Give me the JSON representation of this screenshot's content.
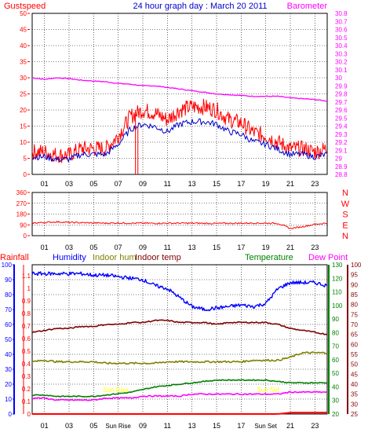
{
  "title": "24 hour graph day : March 20 2011",
  "colors": {
    "gust": "#ff0000",
    "wind": "#0000cc",
    "barometer": "#ff00ff",
    "direction": "#ff0000",
    "rainfall": "#ff0000",
    "humidity": "#0000ff",
    "indoor_hum": "#808000",
    "indoor_temp": "#800000",
    "temperature": "#008000",
    "dew_point": "#ff00ff",
    "sun_marker": "#ffff00",
    "axis_left_bottom": "#0000ff",
    "axis_temp_left": "#008000",
    "axis_temp_right": "#800000",
    "grid": "#000000"
  },
  "hour_labels": [
    "01",
    "03",
    "05",
    "07",
    "09",
    "11",
    "13",
    "15",
    "17",
    "19",
    "21",
    "23"
  ],
  "bottom_hour_labels": [
    "01",
    "03",
    "05",
    "Sun Rise",
    "09",
    "11",
    "13",
    "15",
    "17",
    "Sun Set",
    "21",
    "23"
  ],
  "charts": {
    "top": {
      "left_label": "Gustspeed",
      "right_label": "Barometer",
      "y_left_ticks": [
        "50",
        "45",
        "40",
        "35",
        "30",
        "25",
        "20",
        "15",
        "10",
        "5",
        "0"
      ],
      "y_right_ticks": [
        "30.8",
        "30.7",
        "30.6",
        "30.5",
        "30.4",
        "30.3",
        "30.2",
        "30.1",
        "30",
        "29.9",
        "29.8",
        "29.7",
        "29.6",
        "29.5",
        "29.4",
        "29.3",
        "29.2",
        "29.1",
        "29",
        "28.9",
        "28.8"
      ]
    },
    "middle": {
      "y_ticks": [
        "360",
        "270",
        "180",
        "90",
        "0"
      ],
      "compass": [
        "N",
        "W",
        "S",
        "E",
        "N"
      ]
    },
    "bottom": {
      "legend": {
        "rainfall": "Rainfall",
        "humidity": "Humidity",
        "indoor_hum": "Indoor hum",
        "indoor_temp": "Indoor temp",
        "temperature": "Temperature",
        "dew_point": "Dew Point"
      },
      "y_humidity_ticks": [
        "100",
        "90",
        "80",
        "70",
        "60",
        "50",
        "40",
        "30",
        "20",
        "10",
        "0"
      ],
      "y_rain_ticks": [
        "1.1",
        "1",
        "0.9",
        "0.8",
        "0.7",
        "0.6",
        "0.5",
        "0.4",
        "0.3",
        "0.2",
        "0.1",
        "0"
      ],
      "y_temp_green_ticks": [
        "130",
        "120",
        "110",
        "100",
        "90",
        "80",
        "70",
        "60",
        "50",
        "40",
        "30",
        "20"
      ],
      "y_temp_red_ticks": [
        "100",
        "95",
        "90",
        "85",
        "80",
        "75",
        "70",
        "65",
        "60",
        "55",
        "50",
        "45",
        "40",
        "35",
        "30",
        "25"
      ],
      "sun_labels": [
        "Sun Rise",
        "Sun Set"
      ]
    }
  },
  "chart_data": [
    {
      "type": "line",
      "title": "24 hour graph day : March 20 2011",
      "x": [
        0,
        1,
        2,
        3,
        4,
        5,
        6,
        7,
        8,
        9,
        10,
        11,
        12,
        13,
        14,
        15,
        16,
        17,
        18,
        19,
        20,
        21,
        22,
        23,
        24
      ],
      "series": [
        {
          "name": "Gustspeed",
          "axis": "left",
          "values": [
            7,
            7,
            6,
            6,
            8,
            8,
            8,
            12,
            18,
            20,
            19,
            17,
            20,
            21,
            21,
            20,
            17,
            16,
            13,
            12,
            10,
            8,
            8,
            7,
            8
          ]
        },
        {
          "name": "Barometer",
          "axis": "right",
          "values": [
            30.0,
            29.98,
            30.0,
            29.99,
            29.97,
            29.96,
            29.95,
            29.93,
            29.92,
            29.9,
            29.9,
            29.88,
            29.86,
            29.84,
            29.82,
            29.8,
            29.79,
            29.78,
            29.77,
            29.77,
            29.77,
            29.75,
            29.74,
            29.73,
            29.71
          ]
        }
      ],
      "ylim_left": [
        0,
        50
      ],
      "ylim_right": [
        28.8,
        30.8
      ]
    },
    {
      "type": "line",
      "x": [
        0,
        1,
        2,
        3,
        4,
        5,
        6,
        7,
        8,
        9,
        10,
        11,
        12,
        13,
        14,
        15,
        16,
        17,
        18,
        19,
        20,
        21,
        22,
        23,
        24
      ],
      "series": [
        {
          "name": "Wind direction",
          "values": [
            105,
            110,
            115,
            110,
            108,
            106,
            104,
            106,
            104,
            104,
            103,
            104,
            104,
            104,
            103,
            102,
            103,
            104,
            105,
            104,
            103,
            60,
            75,
            95,
            105
          ]
        }
      ],
      "ylim": [
        0,
        360
      ]
    },
    {
      "type": "line",
      "x": [
        0,
        1,
        2,
        3,
        4,
        5,
        6,
        7,
        8,
        9,
        10,
        11,
        12,
        13,
        14,
        15,
        16,
        17,
        18,
        19,
        20,
        21,
        22,
        23,
        24
      ],
      "series": [
        {
          "name": "Humidity",
          "axis": "humidity",
          "values": [
            94,
            94,
            94,
            94,
            94,
            93,
            93,
            92,
            91,
            90,
            86,
            84,
            78,
            72,
            70,
            71,
            72,
            73,
            72,
            74,
            84,
            88,
            88,
            88,
            86
          ]
        },
        {
          "name": "Indoor hum",
          "axis": "humidity",
          "values": [
            35,
            36,
            35,
            35,
            35,
            35,
            34,
            34,
            34,
            34,
            34,
            35,
            35,
            35,
            35,
            35,
            35,
            35,
            36,
            36,
            36,
            38,
            41,
            41,
            41
          ]
        },
        {
          "name": "Indoor temp",
          "axis": "temp_red",
          "values": [
            66,
            67,
            68,
            68,
            69,
            69,
            70,
            70,
            71,
            71,
            72,
            72,
            71,
            71,
            71,
            70,
            71,
            71,
            71,
            71,
            70,
            68,
            67,
            66,
            65
          ]
        },
        {
          "name": "Temperature",
          "axis": "temp_green",
          "values": [
            34,
            34,
            33,
            33,
            33,
            33,
            34,
            35,
            36,
            38,
            40,
            41,
            42,
            43,
            44,
            45,
            45,
            45,
            45,
            45,
            44,
            43,
            43,
            43,
            43
          ]
        },
        {
          "name": "Dew Point",
          "axis": "temp_red",
          "values": [
            33,
            33,
            32,
            32,
            32,
            32,
            33,
            33,
            33,
            34,
            34,
            34,
            34,
            35,
            35,
            35,
            35,
            35,
            35,
            35,
            35,
            36,
            36,
            36,
            36
          ]
        },
        {
          "name": "Rainfall",
          "axis": "rain",
          "values": [
            0.0,
            0.0,
            0.0,
            0.0,
            0.0,
            0.0,
            0.0,
            0.0,
            0.0,
            0.0,
            0.0,
            0.0,
            0.0,
            0.0,
            0.0,
            0.0,
            0.0,
            0.0,
            0.0,
            0.0,
            0.0,
            0.01,
            0.01,
            0.01,
            0.01
          ]
        }
      ],
      "ylim_humidity": [
        0,
        100
      ],
      "ylim_rain": [
        0,
        1.1
      ],
      "ylim_temp_green": [
        20,
        130
      ],
      "ylim_temp_red": [
        25,
        100
      ]
    }
  ]
}
